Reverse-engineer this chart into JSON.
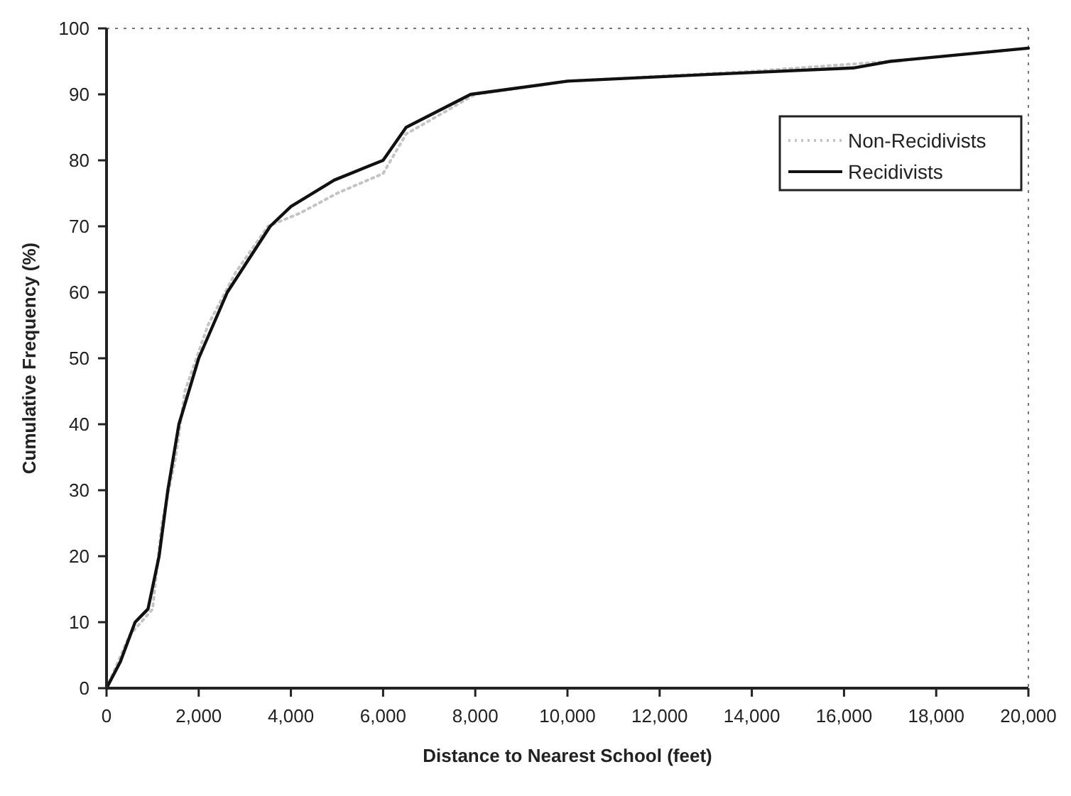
{
  "chart_data": {
    "type": "line",
    "xlabel": "Distance to Nearest School (feet)",
    "ylabel": "Cumulative Frequency (%)",
    "xlim": [
      0,
      20000
    ],
    "xticks": [
      {
        "value": 0,
        "label": "0"
      },
      {
        "value": 2000,
        "label": "2,000"
      },
      {
        "value": 4000,
        "label": "4,000"
      },
      {
        "value": 6000,
        "label": "6,000"
      },
      {
        "value": 8000,
        "label": "8,000"
      },
      {
        "value": 10000,
        "label": "10,000"
      },
      {
        "value": 12000,
        "label": "12,000"
      },
      {
        "value": 14000,
        "label": "14,000"
      },
      {
        "value": 16000,
        "label": "16,000"
      },
      {
        "value": 18000,
        "label": "18,000"
      },
      {
        "value": 20000,
        "label": "20,000"
      }
    ],
    "ylim": [
      0,
      100
    ],
    "yticks": [
      0,
      10,
      20,
      30,
      40,
      50,
      60,
      70,
      80,
      90,
      100
    ],
    "grid": false,
    "legend": "top right",
    "series": [
      {
        "name": "Non-Recidivists",
        "color": "#c4c4c4",
        "line_style": "dotted",
        "x": [
          0,
          500,
          1000,
          1200,
          1500,
          1700,
          2200,
          2800,
          3500,
          4200,
          5000,
          6000,
          6500,
          8000,
          10000,
          14000,
          17000,
          20000
        ],
        "values": [
          0,
          8,
          12,
          25,
          35,
          45,
          55,
          63,
          70,
          72,
          75,
          78,
          84,
          90,
          92,
          93.5,
          95,
          97
        ]
      },
      {
        "name": "Recidivists",
        "color": "#111111",
        "line_style": "solid",
        "x": [
          0,
          300,
          620,
          900,
          1140,
          1330,
          1570,
          2000,
          2620,
          3550,
          4000,
          4940,
          6000,
          6500,
          7900,
          10000,
          13000,
          16200,
          17000,
          20000
        ],
        "values": [
          0,
          4,
          10,
          12,
          20,
          30,
          40,
          50,
          60,
          70,
          73,
          77,
          80,
          85,
          90,
          92,
          93,
          94,
          95,
          97
        ]
      }
    ]
  }
}
